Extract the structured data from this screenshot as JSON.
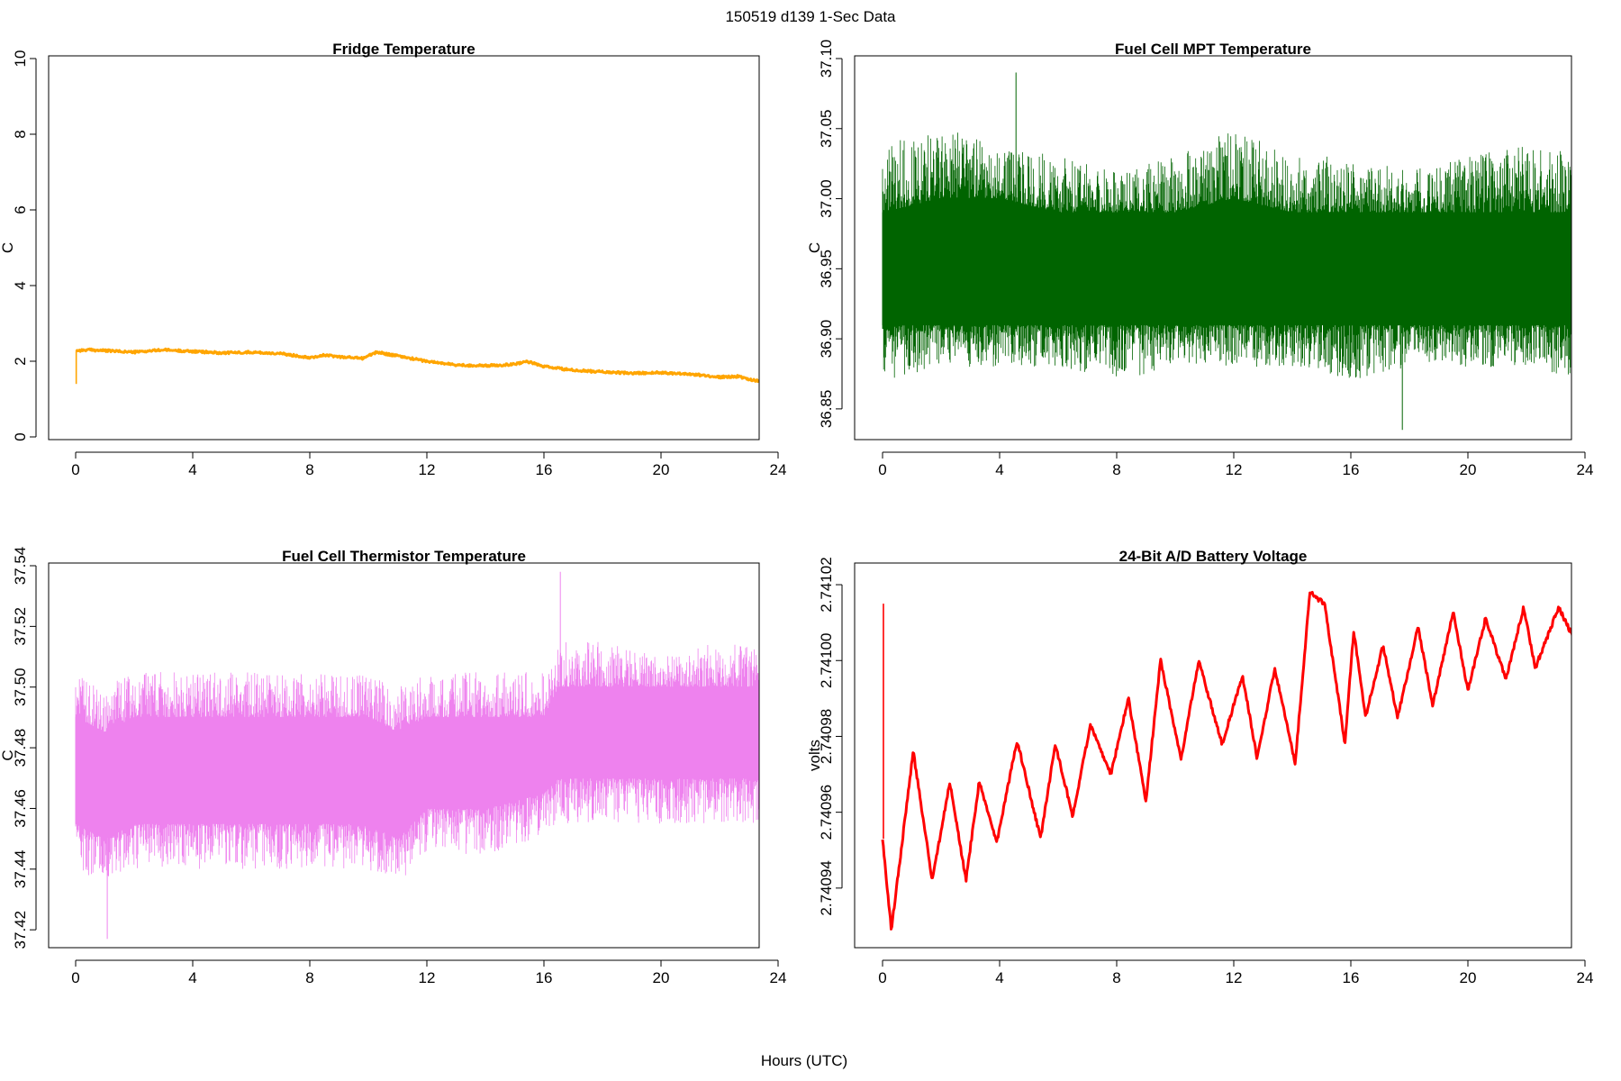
{
  "figure_title": "150519   d139   1-Sec Data",
  "shared_xlabel": "Hours (UTC)",
  "colors": {
    "fridge": "#FFA500",
    "mpt": "#006400",
    "thermistor": "#EE82EE",
    "battery": "#FF0000",
    "axis": "#000000"
  },
  "chart_data": [
    {
      "id": "fridge",
      "type": "line",
      "title": "Fridge Temperature",
      "xlabel": "",
      "ylabel": "C",
      "xlim": [
        0,
        24
      ],
      "ylim": [
        0,
        10
      ],
      "xticks": [
        0,
        4,
        8,
        12,
        16,
        20,
        24
      ],
      "yticks": [
        0,
        2,
        4,
        6,
        8,
        10
      ],
      "ytick_labels": [
        "0",
        "2",
        "4",
        "6",
        "8",
        "10"
      ],
      "band": 0.03,
      "spike": {
        "x": 0.02,
        "y_from": 1.4,
        "y_to": 2.28
      },
      "series": [
        {
          "name": "Fridge Temperature",
          "x": [
            0,
            0.5,
            1,
            2,
            3,
            4,
            5,
            6,
            7,
            8,
            8.5,
            9,
            9.8,
            10.3,
            11,
            12,
            13,
            14,
            15,
            15.4,
            16,
            17,
            18,
            19,
            20,
            21,
            22,
            22.6,
            23,
            24
          ],
          "y": [
            2.28,
            2.3,
            2.28,
            2.24,
            2.3,
            2.26,
            2.22,
            2.24,
            2.2,
            2.1,
            2.16,
            2.12,
            2.08,
            2.24,
            2.14,
            2.0,
            1.9,
            1.88,
            1.92,
            2.0,
            1.86,
            1.76,
            1.72,
            1.68,
            1.7,
            1.66,
            1.58,
            1.6,
            1.52,
            1.42
          ]
        }
      ]
    },
    {
      "id": "mpt",
      "type": "line",
      "title": "Fuel Cell MPT Temperature",
      "xlabel": "",
      "ylabel": "C",
      "xlim": [
        0,
        24
      ],
      "ylim": [
        36.83,
        37.1
      ],
      "xticks": [
        0,
        4,
        8,
        12,
        16,
        20,
        24
      ],
      "yticks": [
        36.85,
        36.9,
        36.95,
        37.0,
        37.05,
        37.1
      ],
      "ytick_labels": [
        "36.85",
        "36.90",
        "36.95",
        "37.00",
        "37.05",
        "37.10"
      ],
      "series": [
        {
          "name": "Fuel Cell MPT Temperature",
          "envelope_x": [
            0,
            2,
            4,
            6,
            8,
            10,
            12,
            14,
            16,
            18,
            20,
            22,
            24
          ],
          "upper": [
            37.04,
            37.05,
            37.04,
            37.03,
            37.02,
            37.03,
            37.05,
            37.03,
            37.03,
            37.02,
            37.03,
            37.04,
            37.03
          ],
          "lower": [
            36.87,
            36.88,
            36.88,
            36.88,
            36.87,
            36.88,
            36.88,
            36.88,
            36.87,
            36.88,
            36.88,
            36.88,
            36.87
          ],
          "core_upper": [
            36.99,
            37.0,
            37.0,
            36.99,
            36.99,
            36.99,
            37.0,
            36.99,
            36.99,
            36.99,
            36.99,
            36.99,
            36.99
          ],
          "core_lower": [
            36.91,
            36.91,
            36.91,
            36.91,
            36.91,
            36.91,
            36.91,
            36.91,
            36.91,
            36.91,
            36.91,
            36.91,
            36.91
          ],
          "max_spike": 37.09,
          "min_spike": 36.835
        }
      ]
    },
    {
      "id": "thermistor",
      "type": "line",
      "title": "Fuel Cell Thermistor Temperature",
      "xlabel": "",
      "ylabel": "C",
      "xlim": [
        0,
        24
      ],
      "ylim": [
        37.415,
        37.54
      ],
      "xticks": [
        0,
        4,
        8,
        12,
        16,
        20,
        24
      ],
      "yticks": [
        37.42,
        37.44,
        37.46,
        37.48,
        37.5,
        37.52,
        37.54
      ],
      "ytick_labels": [
        "37.42",
        "37.44",
        "37.46",
        "37.48",
        "37.50",
        "37.52",
        "37.54"
      ],
      "series": [
        {
          "name": "Fuel Cell Thermistor Temperature",
          "envelope_x": [
            0,
            1,
            2,
            4,
            6,
            8,
            10,
            11,
            12,
            14,
            16,
            16.5,
            18,
            20,
            22,
            24
          ],
          "upper": [
            37.505,
            37.5,
            37.505,
            37.505,
            37.505,
            37.505,
            37.505,
            37.5,
            37.505,
            37.505,
            37.505,
            37.515,
            37.515,
            37.51,
            37.515,
            37.515
          ],
          "lower": [
            37.44,
            37.435,
            37.44,
            37.44,
            37.44,
            37.44,
            37.44,
            37.435,
            37.445,
            37.445,
            37.45,
            37.455,
            37.455,
            37.455,
            37.455,
            37.455
          ],
          "core_upper": [
            37.49,
            37.485,
            37.49,
            37.49,
            37.49,
            37.49,
            37.49,
            37.485,
            37.49,
            37.49,
            37.49,
            37.5,
            37.5,
            37.5,
            37.5,
            37.5
          ],
          "core_lower": [
            37.455,
            37.45,
            37.455,
            37.455,
            37.455,
            37.455,
            37.455,
            37.45,
            37.46,
            37.46,
            37.465,
            37.47,
            37.47,
            37.47,
            37.47,
            37.47
          ],
          "max_spike": 37.538,
          "min_spike": 37.417
        }
      ]
    },
    {
      "id": "battery",
      "type": "line",
      "title": "24-Bit A/D Battery Voltage",
      "xlabel": "",
      "ylabel": "volts",
      "xlim": [
        0,
        24
      ],
      "ylim": [
        2.740925,
        2.741025
      ],
      "xticks": [
        0,
        4,
        8,
        12,
        16,
        20,
        24
      ],
      "yticks": [
        2.74094,
        2.74096,
        2.74098,
        2.741,
        2.74102
      ],
      "ytick_labels": [
        "2.74094",
        "2.74096",
        "2.74098",
        "2.74100",
        "2.74102"
      ],
      "band": 6e-07,
      "spike": {
        "x": 0.03,
        "y_from": 2.740953,
        "y_to": 2.741015
      },
      "series": [
        {
          "name": "24-Bit A/D Battery Voltage",
          "x": [
            0,
            0.3,
            1.05,
            1.7,
            2.3,
            2.85,
            3.3,
            3.9,
            4.6,
            5.4,
            5.9,
            6.5,
            7.1,
            7.8,
            8.4,
            9.0,
            9.5,
            10.2,
            10.8,
            11.6,
            12.3,
            12.8,
            13.4,
            14.1,
            14.6,
            15.1,
            15.8,
            16.1,
            16.5,
            17.1,
            17.6,
            18.3,
            18.8,
            19.5,
            20.0,
            20.6,
            21.3,
            21.9,
            22.3,
            23.1,
            23.8,
            24.0
          ],
          "y": [
            2.740953,
            2.740929,
            2.740976,
            2.740942,
            2.740968,
            2.740942,
            2.740968,
            2.740952,
            2.740979,
            2.740953,
            2.740978,
            2.740959,
            2.740983,
            2.74097,
            2.74099,
            2.740963,
            2.741,
            2.740974,
            2.741,
            2.740978,
            2.740996,
            2.740974,
            2.740998,
            2.740973,
            2.741018,
            2.741015,
            2.740978,
            2.741008,
            2.740985,
            2.741004,
            2.740985,
            2.741009,
            2.740988,
            2.741013,
            2.740992,
            2.741011,
            2.740995,
            2.741014,
            2.740998,
            2.741014,
            2.741003,
            2.741014
          ]
        }
      ]
    }
  ]
}
